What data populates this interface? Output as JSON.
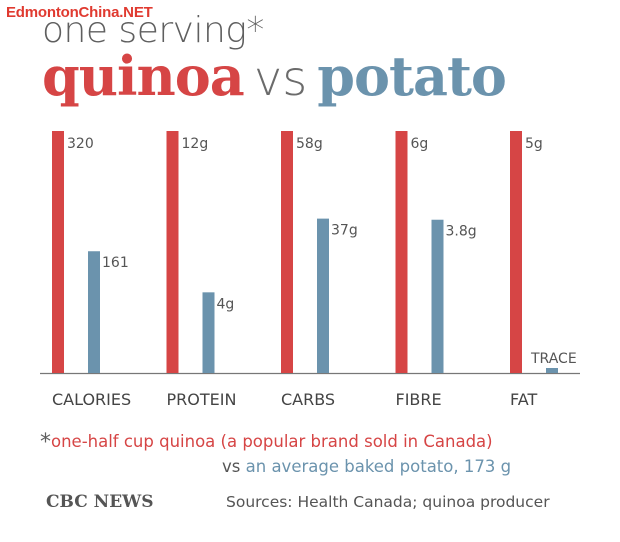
{
  "watermark": "EdmontonChina.NET",
  "subtitle": "one serving*",
  "title": {
    "quinoa": "quinoa",
    "vs": "vs",
    "potato": "potato"
  },
  "colors": {
    "quinoa": "#d64545",
    "potato": "#6b93ad",
    "text": "#555555",
    "axis": "#777777"
  },
  "chart_data": {
    "type": "bar",
    "categories": [
      "CALORIES",
      "PROTEIN",
      "CARBS",
      "FIBRE",
      "FAT"
    ],
    "series": [
      {
        "name": "quinoa",
        "values": [
          320,
          12,
          58,
          6,
          5
        ],
        "labels": [
          "320",
          "12g",
          "58g",
          "6g",
          "5g"
        ]
      },
      {
        "name": "potato",
        "values": [
          161,
          4,
          37,
          3.8,
          0
        ],
        "labels": [
          "161",
          "4g",
          "37g",
          "3.8g",
          "TRACE"
        ]
      }
    ],
    "scale": "each category scaled so the quinoa bar is full height",
    "grid": false,
    "legend": "none"
  },
  "footnote": {
    "star": "*",
    "quinoa": "one-half cup quinoa (a popular brand sold in Canada)",
    "vs": "vs",
    "potato": "an average baked potato, 173 g"
  },
  "source": {
    "brand": "CBC NEWS",
    "text": "Sources: Health Canada; quinoa producer"
  }
}
